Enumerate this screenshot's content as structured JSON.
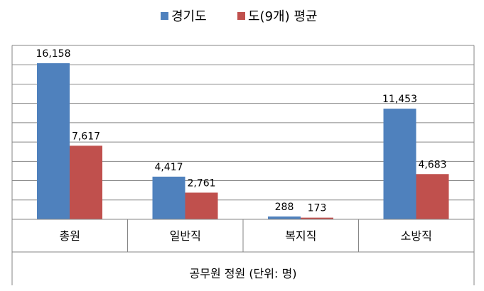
{
  "chart_data": {
    "type": "bar",
    "title": "",
    "xlabel": "공무원 정원 (단위: 명)",
    "ylabel": "",
    "categories": [
      "총원",
      "일반직",
      "복지직",
      "소방직"
    ],
    "series": [
      {
        "name": "경기도",
        "values": [
          16158,
          4417,
          288,
          11453
        ],
        "color": "#4F81BD"
      },
      {
        "name": "도(9개) 평균",
        "values": [
          7617,
          2761,
          173,
          4683
        ],
        "color": "#C0504D"
      }
    ],
    "data_labels": [
      [
        "16,158",
        "4,417",
        "288",
        "11,453"
      ],
      [
        "7,617",
        "2,761",
        "173",
        "4,683"
      ]
    ],
    "ylim": [
      0,
      18000
    ],
    "grid": true,
    "legend_position": "top-center",
    "gridline_color": "#868686"
  }
}
